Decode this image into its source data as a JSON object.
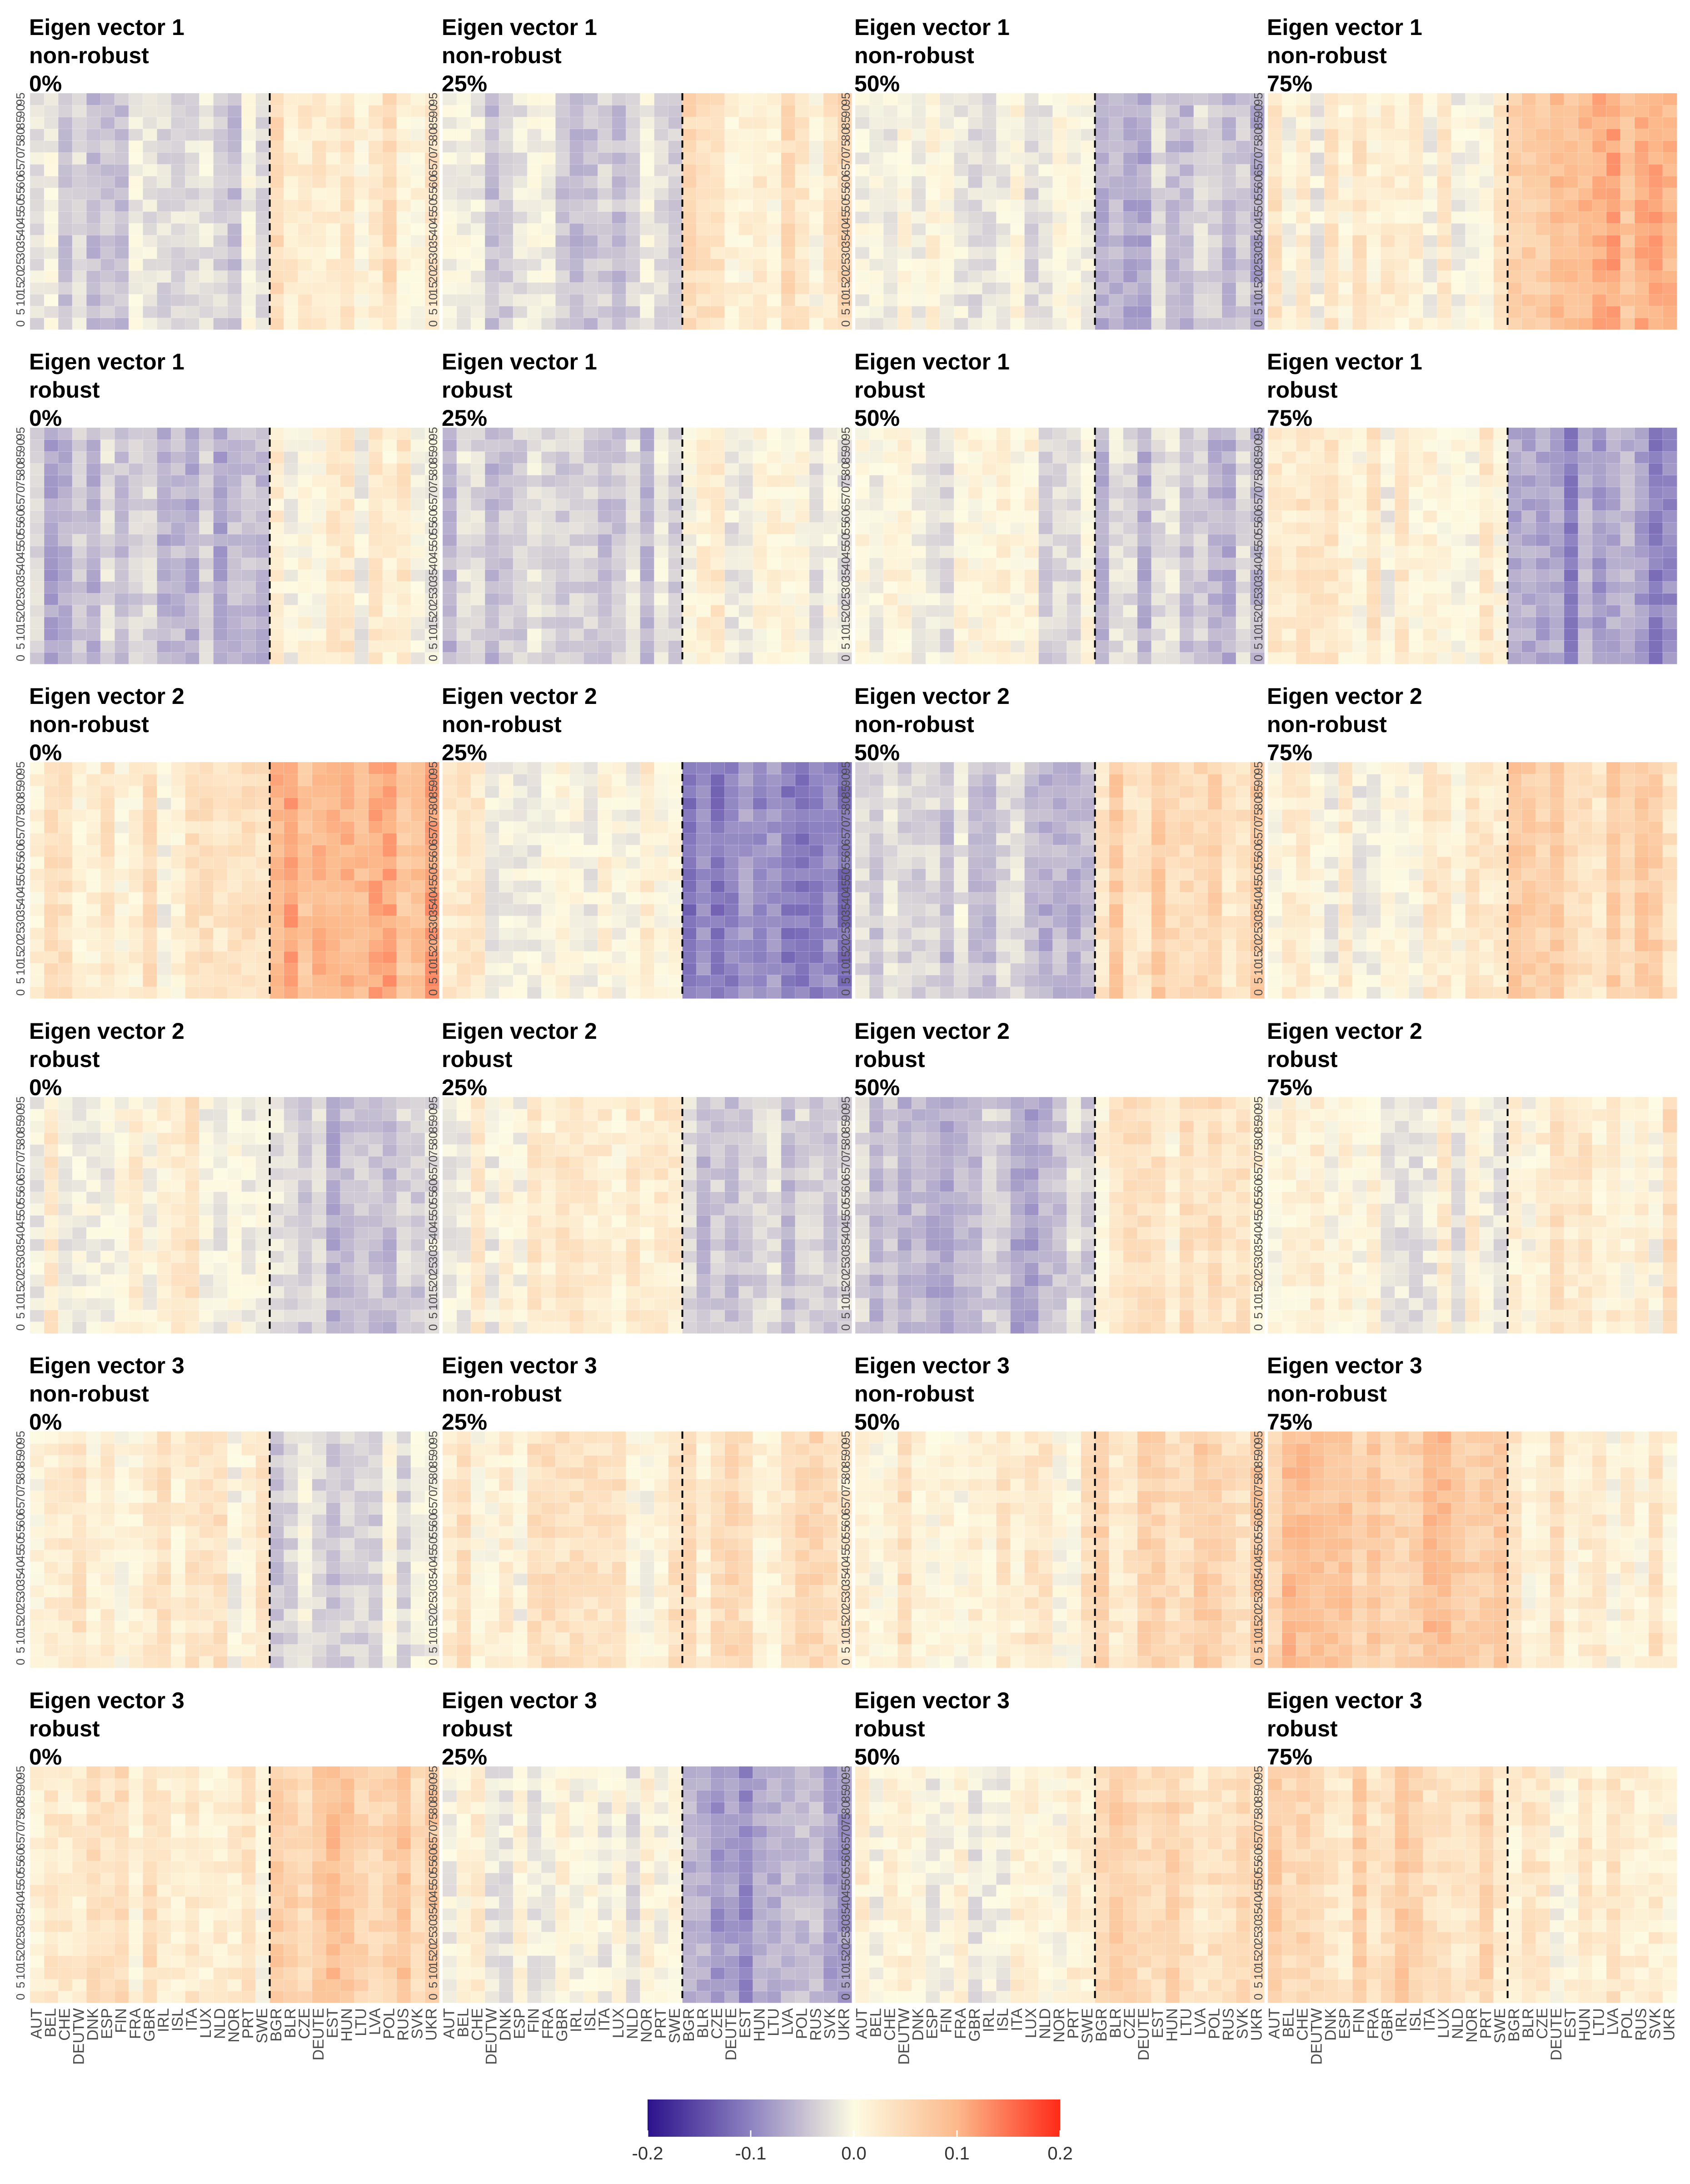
{
  "figure": {
    "layout": {
      "rows": 6,
      "cols": 4
    },
    "colorbar": {
      "min": -0.2,
      "max": 0.2,
      "ticks": [
        "-0.2",
        "-0.1",
        "0.0",
        "0.1",
        "0.2"
      ],
      "tick_values": [
        -0.2,
        -0.1,
        0.0,
        0.1,
        0.2
      ],
      "colors": {
        "low": "#2c128c",
        "mid_low": "#8e83c1",
        "neutral": "#fdfbe3",
        "mid_high": "#fcb98b",
        "high": "#ff2a17"
      }
    },
    "separator": {
      "after_country": "SWE",
      "style": "dashed",
      "color": "#000000"
    }
  },
  "chart_data": {
    "type": "heatmap",
    "x_categories": [
      "AUT",
      "BEL",
      "CHE",
      "DEUTW",
      "DNK",
      "ESP",
      "FIN",
      "FRA",
      "GBR",
      "IRL",
      "ISL",
      "ITA",
      "LUX",
      "NLD",
      "NOR",
      "PRT",
      "SWE",
      "BGR",
      "BLR",
      "CZE",
      "DEUTE",
      "EST",
      "HUN",
      "LTU",
      "LVA",
      "POL",
      "RUS",
      "SVK",
      "UKR"
    ],
    "y_ticks": [
      "0",
      "5",
      "10",
      "15",
      "20",
      "25",
      "30",
      "35",
      "40",
      "45",
      "50",
      "55",
      "60",
      "65",
      "70",
      "75",
      "80",
      "85",
      "90",
      "95"
    ],
    "y_values": [
      0,
      5,
      10,
      15,
      20,
      25,
      30,
      35,
      40,
      45,
      50,
      55,
      60,
      65,
      70,
      75,
      80,
      85,
      90,
      95
    ],
    "panels": [
      {
        "title": [
          "Eigen vector 1",
          "non-robust",
          "0%"
        ],
        "eigen": 1,
        "robust": false,
        "pct": 0
      },
      {
        "title": [
          "Eigen vector 1",
          "non-robust",
          "25%"
        ],
        "eigen": 1,
        "robust": false,
        "pct": 25
      },
      {
        "title": [
          "Eigen vector 1",
          "non-robust",
          "50%"
        ],
        "eigen": 1,
        "robust": false,
        "pct": 50
      },
      {
        "title": [
          "Eigen vector 1",
          "non-robust",
          "75%"
        ],
        "eigen": 1,
        "robust": false,
        "pct": 75
      },
      {
        "title": [
          "Eigen vector 1",
          "robust",
          "0%"
        ],
        "eigen": 1,
        "robust": true,
        "pct": 0
      },
      {
        "title": [
          "Eigen vector 1",
          "robust",
          "25%"
        ],
        "eigen": 1,
        "robust": true,
        "pct": 25
      },
      {
        "title": [
          "Eigen vector 1",
          "robust",
          "50%"
        ],
        "eigen": 1,
        "robust": true,
        "pct": 50
      },
      {
        "title": [
          "Eigen vector 1",
          "robust",
          "75%"
        ],
        "eigen": 1,
        "robust": true,
        "pct": 75
      },
      {
        "title": [
          "Eigen vector 2",
          "non-robust",
          "0%"
        ],
        "eigen": 2,
        "robust": false,
        "pct": 0
      },
      {
        "title": [
          "Eigen vector 2",
          "non-robust",
          "25%"
        ],
        "eigen": 2,
        "robust": false,
        "pct": 25
      },
      {
        "title": [
          "Eigen vector 2",
          "non-robust",
          "50%"
        ],
        "eigen": 2,
        "robust": false,
        "pct": 50
      },
      {
        "title": [
          "Eigen vector 2",
          "non-robust",
          "75%"
        ],
        "eigen": 2,
        "robust": false,
        "pct": 75
      },
      {
        "title": [
          "Eigen vector 2",
          "robust",
          "0%"
        ],
        "eigen": 2,
        "robust": true,
        "pct": 0
      },
      {
        "title": [
          "Eigen vector 2",
          "robust",
          "25%"
        ],
        "eigen": 2,
        "robust": true,
        "pct": 25
      },
      {
        "title": [
          "Eigen vector 2",
          "robust",
          "50%"
        ],
        "eigen": 2,
        "robust": true,
        "pct": 50
      },
      {
        "title": [
          "Eigen vector 2",
          "robust",
          "75%"
        ],
        "eigen": 2,
        "robust": true,
        "pct": 75
      },
      {
        "title": [
          "Eigen vector 3",
          "non-robust",
          "0%"
        ],
        "eigen": 3,
        "robust": false,
        "pct": 0
      },
      {
        "title": [
          "Eigen vector 3",
          "non-robust",
          "25%"
        ],
        "eigen": 3,
        "robust": false,
        "pct": 25
      },
      {
        "title": [
          "Eigen vector 3",
          "non-robust",
          "50%"
        ],
        "eigen": 3,
        "robust": false,
        "pct": 50
      },
      {
        "title": [
          "Eigen vector 3",
          "non-robust",
          "75%"
        ],
        "eigen": 3,
        "robust": false,
        "pct": 75
      },
      {
        "title": [
          "Eigen vector 3",
          "robust",
          "0%"
        ],
        "eigen": 3,
        "robust": true,
        "pct": 0
      },
      {
        "title": [
          "Eigen vector 3",
          "robust",
          "25%"
        ],
        "eigen": 3,
        "robust": true,
        "pct": 25
      },
      {
        "title": [
          "Eigen vector 3",
          "robust",
          "50%"
        ],
        "eigen": 3,
        "robust": true,
        "pct": 50
      },
      {
        "title": [
          "Eigen vector 3",
          "robust",
          "75%"
        ],
        "eigen": 3,
        "robust": true,
        "pct": 75
      }
    ],
    "approx_values": {
      "description_of_pattern": "",
      "panel_west_east": [
        [
          -0.03,
          0.03
        ],
        [
          -0.03,
          0.03
        ],
        [
          -0.01,
          -0.05
        ],
        [
          0.01,
          0.09
        ],
        [
          -0.05,
          0.01
        ],
        [
          -0.04,
          0.0
        ],
        [
          -0.01,
          -0.04
        ],
        [
          0.01,
          -0.08
        ],
        [
          0.02,
          0.1
        ],
        [
          0.01,
          -0.09
        ],
        [
          -0.04,
          0.05
        ],
        [
          0.01,
          0.05
        ],
        [
          0.01,
          -0.04
        ],
        [
          0.01,
          -0.03
        ],
        [
          -0.05,
          0.03
        ],
        [
          0.0,
          0.02
        ],
        [
          0.02,
          -0.02
        ],
        [
          0.02,
          0.03
        ],
        [
          0.02,
          0.05
        ],
        [
          0.08,
          0.02
        ],
        [
          0.03,
          0.07
        ],
        [
          0.0,
          -0.07
        ],
        [
          0.0,
          0.05
        ],
        [
          0.05,
          0.02
        ]
      ]
    }
  }
}
